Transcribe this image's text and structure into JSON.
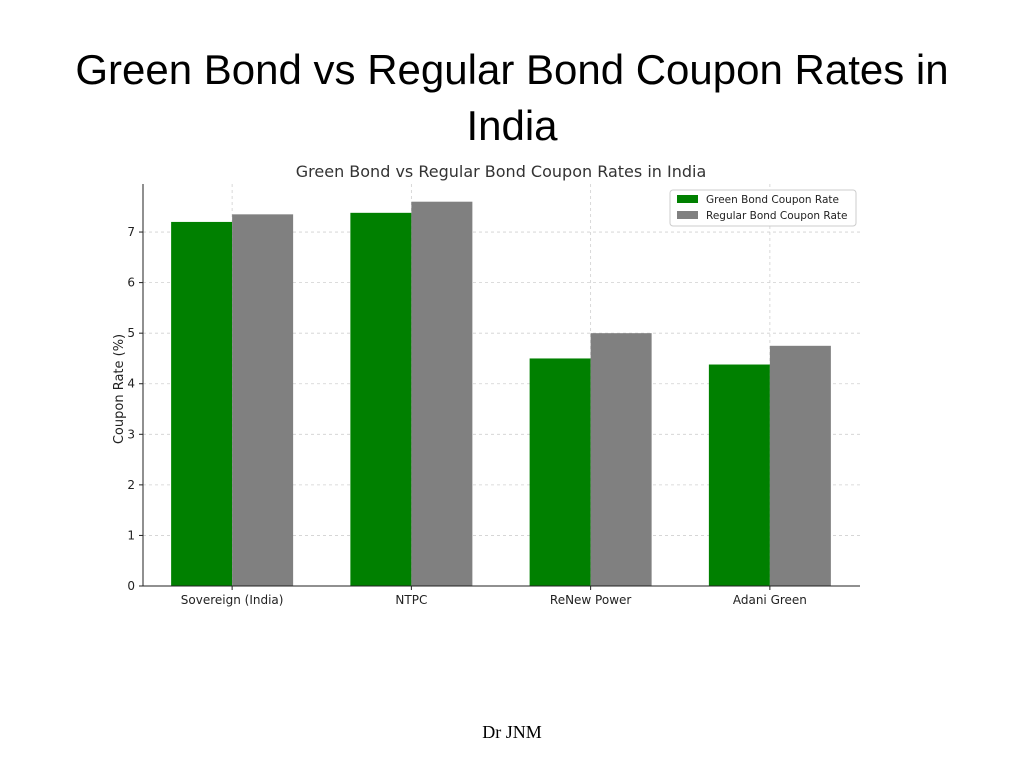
{
  "slide": {
    "title": "Green Bond vs Regular Bond Coupon Rates in India",
    "footer": "Dr JNM"
  },
  "chart_data": {
    "type": "bar",
    "title": "Green Bond vs Regular Bond Coupon Rates in India",
    "xlabel": "",
    "ylabel": "Coupon Rate (%)",
    "categories": [
      "Sovereign (India)",
      "NTPC",
      "ReNew Power",
      "Adani Green"
    ],
    "series": [
      {
        "name": "Green Bond Coupon Rate",
        "color": "#008000",
        "values": [
          7.2,
          7.38,
          4.5,
          4.38
        ]
      },
      {
        "name": "Regular Bond Coupon Rate",
        "color": "#808080",
        "values": [
          7.35,
          7.6,
          5.0,
          4.75
        ]
      }
    ],
    "ylim": [
      0,
      7.95
    ],
    "yticks": [
      0,
      1,
      2,
      3,
      4,
      5,
      6,
      7
    ],
    "grid": true,
    "legend_position": "top-right"
  }
}
